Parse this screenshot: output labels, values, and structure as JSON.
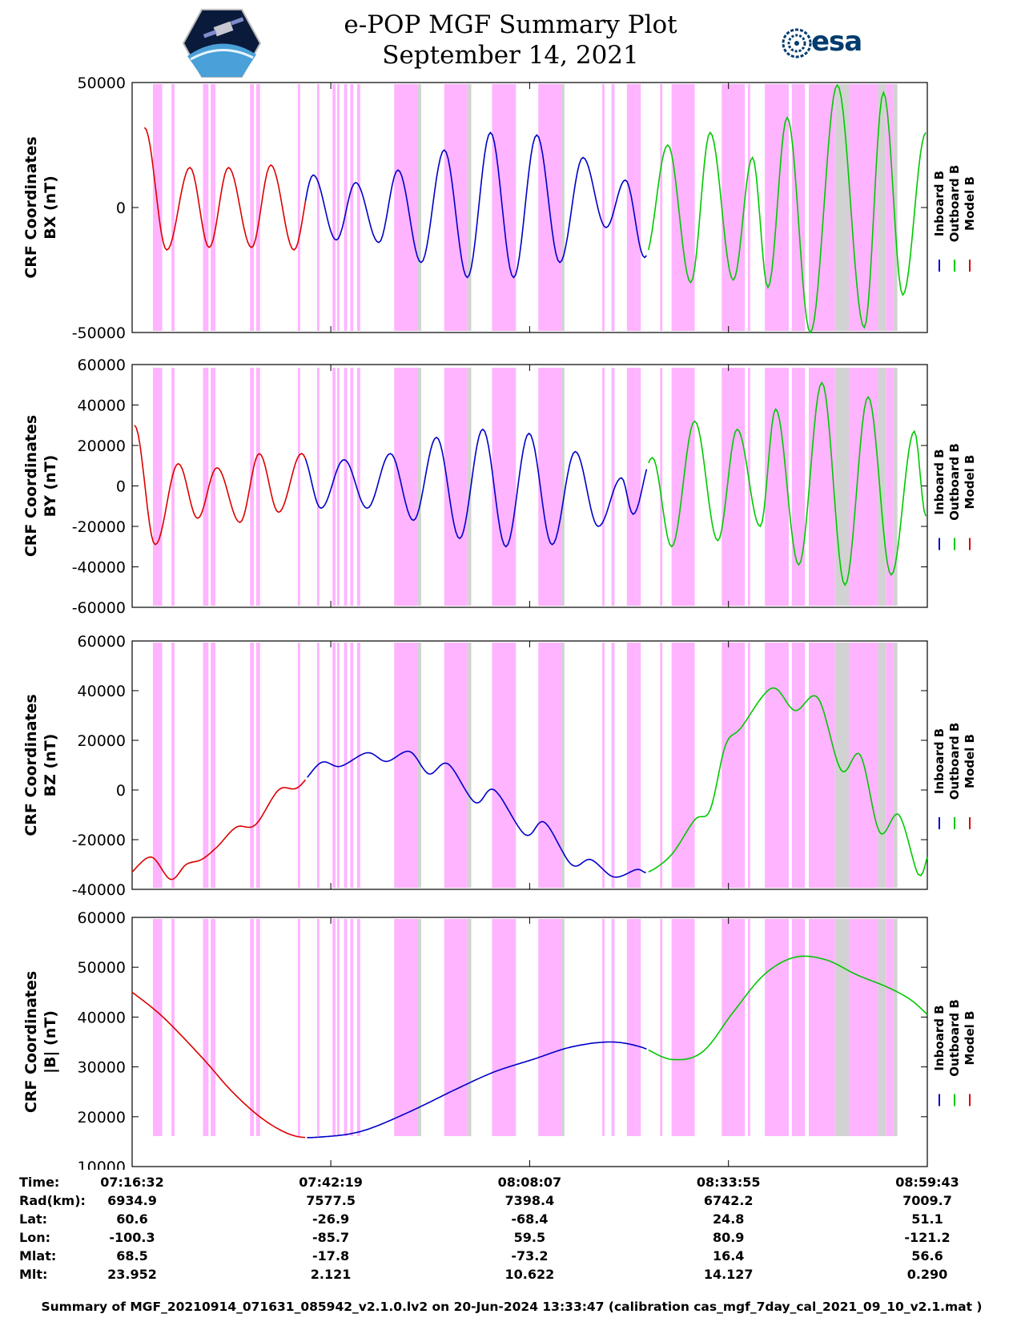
{
  "title": "e-POP MGF Summary Plot",
  "subtitle": "September 14, 2021",
  "esa_logo_text": "esa",
  "legend": {
    "inboard": "Inboard B",
    "outboard": "Outboard B",
    "model": "Model B"
  },
  "colors": {
    "inboard": "#0000c8",
    "outboard": "#00c800",
    "model": "#dc0000",
    "shade_magenta": "#ffb4ff",
    "shade_gray": "#d2d2d2"
  },
  "chart_data": [
    {
      "type": "line",
      "ylabel_line1": "CRF Coordinates",
      "ylabel_line2": "BX (nT)",
      "ylim": [
        -50000,
        50000
      ],
      "yticks": [
        -50000,
        0,
        50000
      ],
      "x_range_minutes": [
        0,
        103.18
      ],
      "curve": {
        "kind": "oscillation",
        "peaks": [
          [
            1.6,
            32000
          ],
          [
            4.5,
            -17000
          ],
          [
            7.5,
            16000
          ],
          [
            10,
            -16000
          ],
          [
            12.5,
            16000
          ],
          [
            15.5,
            -16000
          ],
          [
            18,
            17000
          ],
          [
            21,
            -17000
          ],
          [
            23.5,
            13000
          ],
          [
            26.5,
            -13000
          ],
          [
            29,
            10000
          ],
          [
            32,
            -14000
          ],
          [
            34.5,
            15000
          ],
          [
            37.5,
            -22000
          ],
          [
            40.5,
            23000
          ],
          [
            43.5,
            -28000
          ],
          [
            46.5,
            30000
          ],
          [
            49.5,
            -28000
          ],
          [
            52.5,
            29000
          ],
          [
            55.5,
            -22000
          ],
          [
            58.5,
            20000
          ],
          [
            61.5,
            -8000
          ],
          [
            64,
            11000
          ],
          [
            66.5,
            -20000
          ],
          [
            69.5,
            25000
          ],
          [
            72.5,
            -30000
          ],
          [
            75,
            30000
          ],
          [
            78,
            -29000
          ],
          [
            80.5,
            20000
          ],
          [
            82.5,
            -32000
          ],
          [
            85,
            36000
          ],
          [
            88,
            -50000
          ],
          [
            91.5,
            49000
          ],
          [
            95,
            -48000
          ],
          [
            97.5,
            46000
          ],
          [
            100,
            -35000
          ],
          [
            103,
            30000
          ]
        ]
      }
    },
    {
      "type": "line",
      "ylabel_line1": "CRF Coordinates",
      "ylabel_line2": "BY (nT)",
      "ylim": [
        -60000,
        60000
      ],
      "yticks": [
        -60000,
        -40000,
        -20000,
        0,
        20000,
        40000,
        60000
      ],
      "x_range_minutes": [
        0,
        103.18
      ],
      "curve": {
        "kind": "oscillation",
        "peaks": [
          [
            0.3,
            30000
          ],
          [
            3,
            -29000
          ],
          [
            6,
            11000
          ],
          [
            8.5,
            -16000
          ],
          [
            11,
            9000
          ],
          [
            14,
            -18000
          ],
          [
            16.5,
            16000
          ],
          [
            19,
            -13000
          ],
          [
            22,
            16000
          ],
          [
            24.5,
            -11000
          ],
          [
            27.5,
            13000
          ],
          [
            30.5,
            -11000
          ],
          [
            33.5,
            16000
          ],
          [
            36.5,
            -17000
          ],
          [
            39.5,
            24000
          ],
          [
            42.5,
            -26000
          ],
          [
            45.5,
            28000
          ],
          [
            48.5,
            -30000
          ],
          [
            51.5,
            26000
          ],
          [
            54.5,
            -29000
          ],
          [
            57.5,
            17000
          ],
          [
            60.5,
            -20000
          ],
          [
            63.5,
            4000
          ],
          [
            65,
            -14000
          ],
          [
            67.5,
            14000
          ],
          [
            70,
            -30000
          ],
          [
            73,
            32000
          ],
          [
            76,
            -27000
          ],
          [
            78.5,
            28000
          ],
          [
            81.5,
            -20000
          ],
          [
            83.5,
            38000
          ],
          [
            86.5,
            -39000
          ],
          [
            89.5,
            51000
          ],
          [
            92.5,
            -49000
          ],
          [
            95.5,
            44000
          ],
          [
            98.5,
            -44000
          ],
          [
            101.5,
            27000
          ],
          [
            103,
            -15000
          ]
        ]
      }
    },
    {
      "type": "line",
      "ylabel_line1": "CRF Coordinates",
      "ylabel_line2": "BZ (nT)",
      "ylim": [
        -40000,
        60000
      ],
      "yticks": [
        -40000,
        -20000,
        0,
        20000,
        40000,
        60000
      ],
      "x_range_minutes": [
        0,
        103.18
      ],
      "curve": {
        "kind": "smooth",
        "points": [
          [
            0,
            -33000
          ],
          [
            2.5,
            -27000
          ],
          [
            5,
            -36000
          ],
          [
            7,
            -30000
          ],
          [
            9,
            -28000
          ],
          [
            11,
            -23000
          ],
          [
            13.5,
            -15000
          ],
          [
            16,
            -14000
          ],
          [
            19,
            0
          ],
          [
            21.5,
            1000
          ],
          [
            24.5,
            11000
          ],
          [
            27,
            9500
          ],
          [
            30.5,
            15000
          ],
          [
            33,
            11500
          ],
          [
            36,
            15500
          ],
          [
            38.5,
            6500
          ],
          [
            41,
            10500
          ],
          [
            44.5,
            -5000
          ],
          [
            47,
            0
          ],
          [
            51,
            -18000
          ],
          [
            53.5,
            -13000
          ],
          [
            57,
            -30000
          ],
          [
            59.5,
            -28000
          ],
          [
            62.5,
            -35000
          ],
          [
            65.5,
            -32000
          ],
          [
            67,
            -33000
          ],
          [
            70,
            -26000
          ],
          [
            73,
            -12000
          ],
          [
            75,
            -8000
          ],
          [
            77,
            18000
          ],
          [
            79,
            25000
          ],
          [
            83,
            41000
          ],
          [
            86,
            32000
          ],
          [
            89,
            37000
          ],
          [
            92,
            8000
          ],
          [
            94.5,
            14000
          ],
          [
            97,
            -17000
          ],
          [
            99.5,
            -10000
          ],
          [
            102,
            -34000
          ],
          [
            103.18,
            -27000
          ]
        ]
      }
    },
    {
      "type": "line",
      "ylabel_line1": "CRF Coordinates",
      "ylabel_line2": "|B| (nT)",
      "ylim": [
        10000,
        60000
      ],
      "yticks": [
        10000,
        20000,
        30000,
        40000,
        50000,
        60000
      ],
      "x_range_minutes": [
        0,
        103.18
      ],
      "curve": {
        "kind": "smooth",
        "points": [
          [
            0,
            45000
          ],
          [
            4,
            40000
          ],
          [
            9,
            32000
          ],
          [
            13,
            25000
          ],
          [
            17,
            19500
          ],
          [
            21,
            16200
          ],
          [
            25,
            16000
          ],
          [
            30,
            17200
          ],
          [
            36,
            21000
          ],
          [
            42,
            25500
          ],
          [
            47,
            29000
          ],
          [
            52,
            31500
          ],
          [
            57,
            34000
          ],
          [
            62,
            35000
          ],
          [
            66,
            34000
          ],
          [
            70,
            31500
          ],
          [
            74,
            33000
          ],
          [
            78,
            41000
          ],
          [
            82,
            48500
          ],
          [
            86,
            52000
          ],
          [
            90,
            51500
          ],
          [
            94,
            48500
          ],
          [
            98,
            46000
          ],
          [
            101,
            43500
          ],
          [
            103.18,
            40500
          ]
        ]
      }
    }
  ],
  "colored_segments": {
    "model_end_min": 22.5,
    "inboard_end_min": 66.8
  },
  "shaded_intervals_min": [
    [
      2.7,
      3.9
    ],
    [
      5.1,
      5.5
    ],
    [
      9.2,
      9.9
    ],
    [
      10.2,
      10.8
    ],
    [
      15.3,
      15.8
    ],
    [
      16.1,
      16.6
    ],
    [
      21.5,
      21.8
    ],
    [
      24,
      24.3
    ],
    [
      26,
      26.4
    ],
    [
      26.6,
      26.9
    ],
    [
      27.5,
      27.9
    ],
    [
      28.3,
      28.7
    ],
    [
      29.2,
      29.6
    ],
    [
      34,
      37
    ],
    [
      40.5,
      43.5
    ],
    [
      46.7,
      49.8
    ],
    [
      52.7,
      55.7
    ],
    [
      61,
      61.3
    ],
    [
      62.2,
      62.6
    ],
    [
      64.2,
      66
    ],
    [
      68.5,
      68.8
    ],
    [
      70,
      73
    ],
    [
      76.5,
      79.5
    ],
    [
      79.9,
      80.2
    ],
    [
      82.1,
      85.2
    ],
    [
      85.6,
      87.3
    ],
    [
      87.8,
      91.2
    ],
    [
      93,
      96.8
    ],
    [
      97.8,
      98.8
    ]
  ],
  "gray_intervals_min": [
    [
      37,
      37.5
    ],
    [
      43.5,
      44
    ],
    [
      55.7,
      56.1
    ],
    [
      91.2,
      93
    ],
    [
      96.8,
      97.8
    ],
    [
      98.8,
      99.3
    ]
  ],
  "time_table": {
    "labels": [
      "Time:",
      "Rad(km):",
      "Lat:",
      "Lon:",
      "Mlat:",
      "Mlt:"
    ],
    "columns": [
      [
        "07:16:32",
        "6934.9",
        "60.6",
        "-100.3",
        "68.5",
        "23.952"
      ],
      [
        "07:42:19",
        "7577.5",
        "-26.9",
        "-85.7",
        "-17.8",
        "2.121"
      ],
      [
        "08:08:07",
        "7398.4",
        "-68.4",
        "59.5",
        "-73.2",
        "10.622"
      ],
      [
        "08:33:55",
        "6742.2",
        "24.8",
        "80.9",
        "16.4",
        "14.127"
      ],
      [
        "08:59:43",
        "7009.7",
        "51.1",
        "-121.2",
        "56.6",
        "0.290"
      ]
    ]
  },
  "footer": "Summary of MGF_20210914_071631_085942_v2.1.0.lv2 on 20-Jun-2024 13:33:47 (calibration cas_mgf_7day_cal_2021_09_10_v2.1.mat )"
}
